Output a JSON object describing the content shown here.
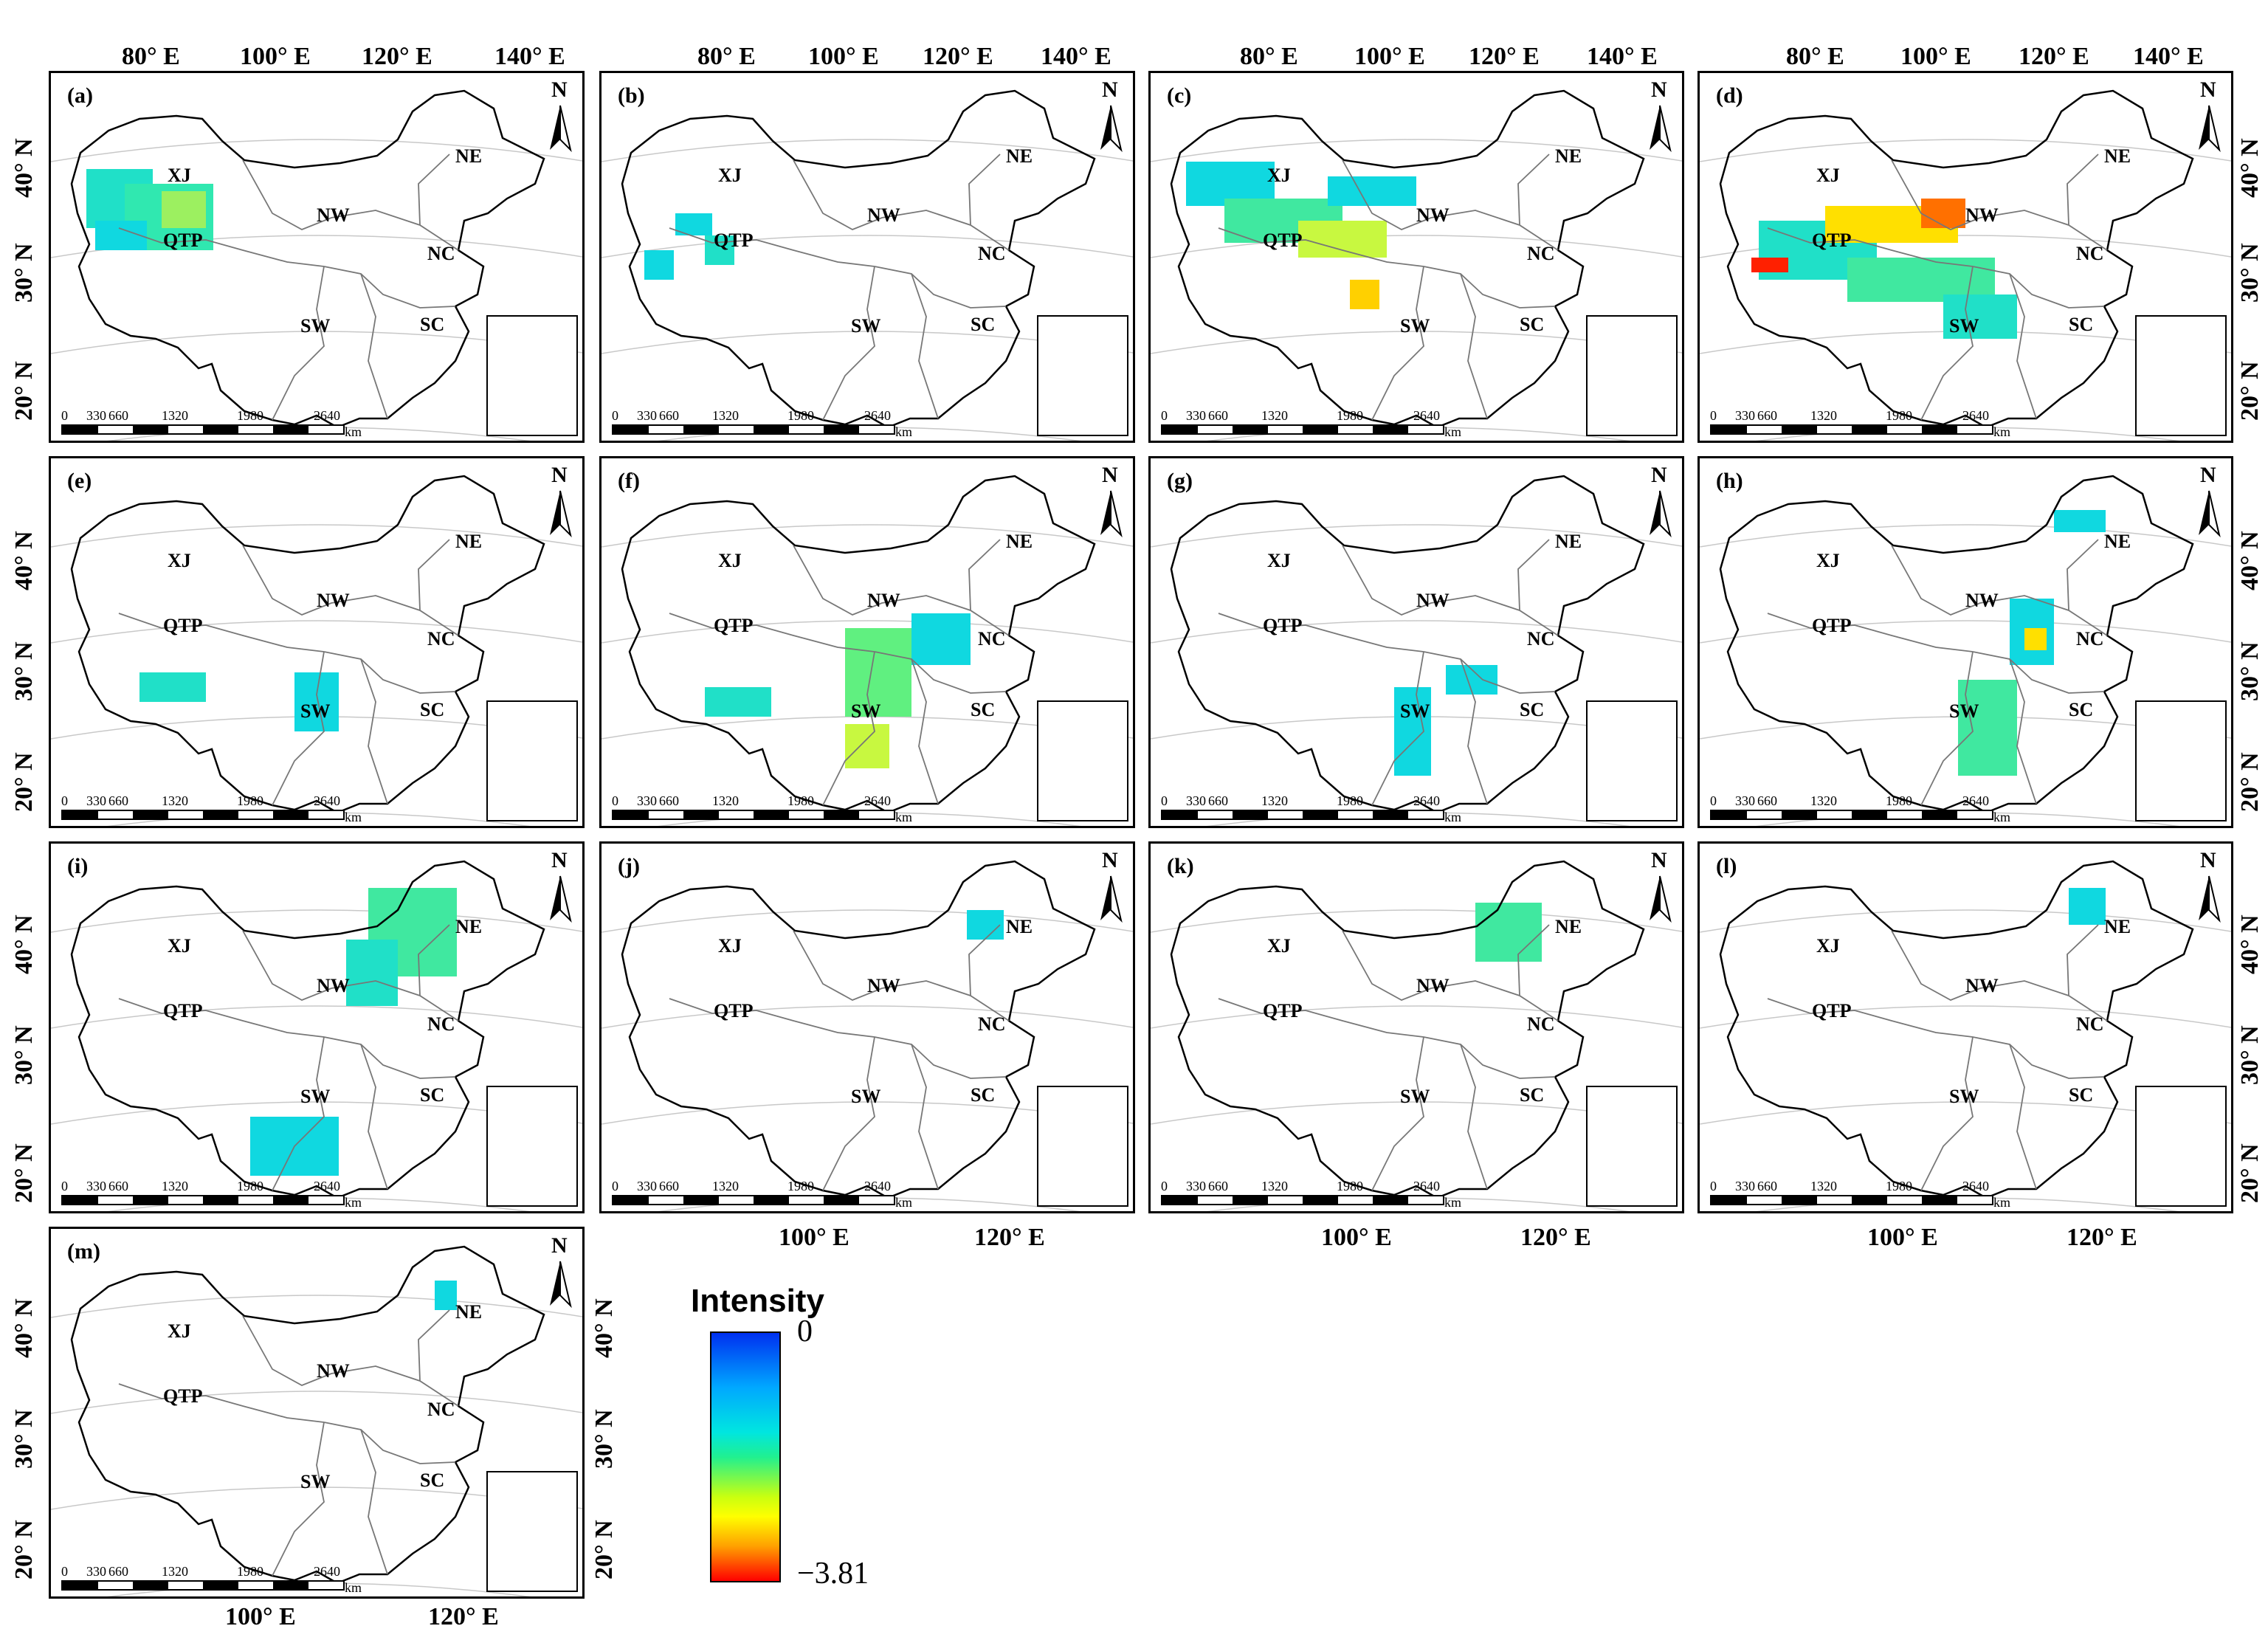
{
  "panels": [
    {
      "label": "(a)"
    },
    {
      "label": "(b)"
    },
    {
      "label": "(c)"
    },
    {
      "label": "(d)"
    },
    {
      "label": "(e)"
    },
    {
      "label": "(f)"
    },
    {
      "label": "(g)"
    },
    {
      "label": "(h)"
    },
    {
      "label": "(i)"
    },
    {
      "label": "(j)"
    },
    {
      "label": "(k)"
    },
    {
      "label": "(l)"
    },
    {
      "label": "(m)"
    }
  ],
  "regions": {
    "xj": "XJ",
    "nw": "NW",
    "ne": "NE",
    "qtp": "QTP",
    "nc": "NC",
    "sw": "SW",
    "sc": "SC"
  },
  "north": "N",
  "ticks": {
    "e80": "80° E",
    "e100": "100° E",
    "e120": "120° E",
    "e140": "140° E",
    "n40": "40° N",
    "n30": "30° N",
    "n20": "20° N"
  },
  "scale": {
    "values": [
      "0",
      "330",
      "660",
      "1320",
      "1980",
      "2640"
    ],
    "unit": "km"
  },
  "legend": {
    "title": "Intensity",
    "max": "0",
    "min": "−3.81"
  },
  "colors": {
    "low": "#00e6d0",
    "mid": "#ffff00",
    "high": "#ff0000",
    "base": "#0030f0"
  },
  "hotspots": [
    {
      "panel": "a",
      "region": "QTP"
    },
    {
      "panel": "b",
      "region": "QTP"
    },
    {
      "panel": "c",
      "region": "XJ/QTP"
    },
    {
      "panel": "d",
      "region": "QTP/SW"
    },
    {
      "panel": "e",
      "region": "QTP/SW"
    },
    {
      "panel": "f",
      "region": "SW/NC"
    },
    {
      "panel": "g",
      "region": "SW/NC"
    },
    {
      "panel": "h",
      "region": "NE/NC/SW"
    },
    {
      "panel": "i",
      "region": "NE/NW/SW"
    },
    {
      "panel": "j",
      "region": "NE"
    },
    {
      "panel": "k",
      "region": "NE"
    },
    {
      "panel": "l",
      "region": "NE"
    },
    {
      "panel": "m",
      "region": "NE"
    }
  ]
}
